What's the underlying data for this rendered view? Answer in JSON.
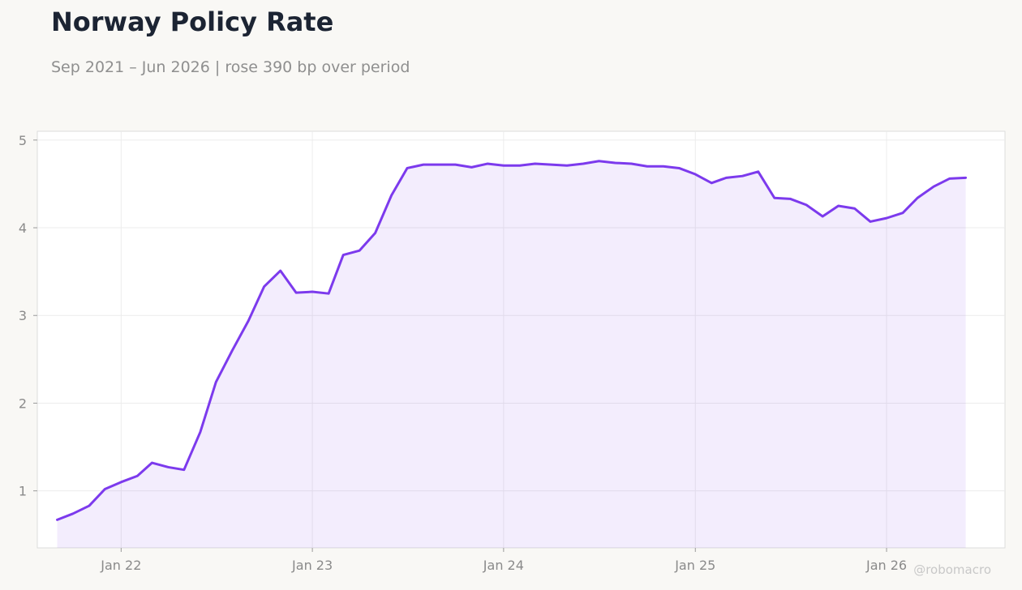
{
  "title": "Norway Policy Rate",
  "subtitle": "Sep 2021 – Jun 2026 | rose 390 bp over period",
  "watermark": "@robomacro",
  "colors": {
    "background": "#f9f8f5",
    "plot_background": "#ffffff",
    "line": "#7c3aed",
    "area_fill": "#7c3aed",
    "grid": "#ececec",
    "axis_text": "#8a8a8a",
    "title": "#1c2433"
  },
  "chart_data": {
    "type": "area",
    "title": "Norway Policy Rate",
    "subtitle": "Sep 2021 – Jun 2026 | rose 390 bp over period",
    "xlabel": "",
    "ylabel": "",
    "x_range": [
      "2021-07-25",
      "2026-08-15"
    ],
    "ylim": [
      0.35,
      5.1
    ],
    "y_ticks": [
      1,
      2,
      3,
      4,
      5
    ],
    "x_ticks": [
      {
        "date": "2022-01-01",
        "label": "Jan 22"
      },
      {
        "date": "2023-01-01",
        "label": "Jan 23"
      },
      {
        "date": "2024-01-01",
        "label": "Jan 24"
      },
      {
        "date": "2025-01-01",
        "label": "Jan 25"
      },
      {
        "date": "2026-01-01",
        "label": "Jan 26"
      }
    ],
    "grid": true,
    "legend": "none",
    "series": [
      {
        "x": [
          "2021-09-01",
          "2021-10-01",
          "2021-11-01",
          "2021-12-01",
          "2022-01-01",
          "2022-02-01",
          "2022-03-01",
          "2022-04-01",
          "2022-05-01",
          "2022-06-01",
          "2022-07-01",
          "2022-08-01",
          "2022-09-01",
          "2022-10-01",
          "2022-11-01",
          "2022-12-01",
          "2023-01-01",
          "2023-02-01",
          "2023-03-01",
          "2023-04-01",
          "2023-05-01",
          "2023-06-01",
          "2023-07-01",
          "2023-08-01",
          "2023-09-01",
          "2023-10-01",
          "2023-11-01",
          "2023-12-01",
          "2024-01-01",
          "2024-02-01",
          "2024-03-01",
          "2024-04-01",
          "2024-05-01",
          "2024-06-01",
          "2024-07-01",
          "2024-08-01",
          "2024-09-01",
          "2024-10-01",
          "2024-11-01",
          "2024-12-01",
          "2025-01-01",
          "2025-02-01",
          "2025-03-01",
          "2025-04-01",
          "2025-05-01",
          "2025-06-01",
          "2025-07-01",
          "2025-08-01",
          "2025-09-01",
          "2025-10-01",
          "2025-11-01",
          "2025-12-01",
          "2026-01-01",
          "2026-02-01",
          "2026-03-01",
          "2026-04-01",
          "2026-05-01",
          "2026-06-01"
        ],
        "values": [
          0.67,
          0.74,
          0.83,
          1.02,
          1.1,
          1.17,
          1.32,
          1.27,
          1.24,
          1.67,
          2.24,
          2.6,
          2.94,
          3.33,
          3.51,
          3.26,
          3.27,
          3.25,
          3.69,
          3.74,
          3.94,
          4.37,
          4.68,
          4.72,
          4.72,
          4.72,
          4.69,
          4.73,
          4.71,
          4.71,
          4.73,
          4.72,
          4.71,
          4.73,
          4.76,
          4.74,
          4.73,
          4.7,
          4.7,
          4.68,
          4.61,
          4.51,
          4.57,
          4.59,
          4.64,
          4.34,
          4.33,
          4.26,
          4.13,
          4.25,
          4.22,
          4.07,
          4.11,
          4.17,
          4.34,
          4.47,
          4.56,
          4.57
        ]
      }
    ]
  }
}
